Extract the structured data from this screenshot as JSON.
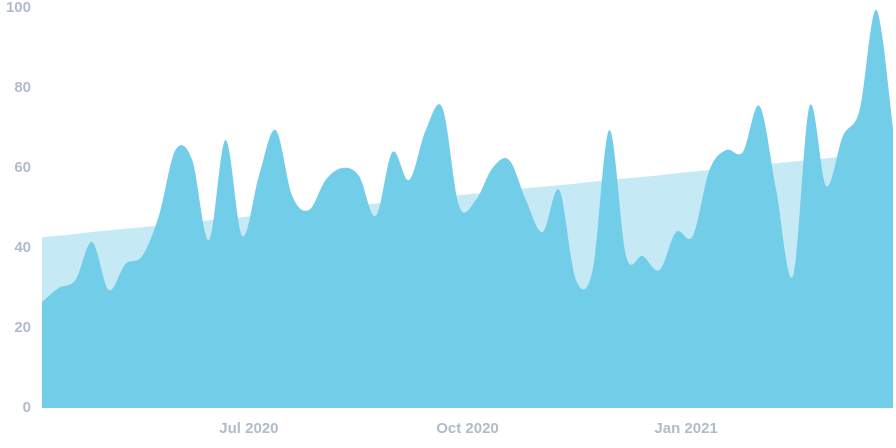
{
  "chart_data": {
    "type": "area",
    "x": [
      0,
      1,
      2,
      3,
      4,
      5,
      6,
      7,
      8,
      9,
      10,
      11,
      12,
      13,
      14,
      15,
      16,
      17,
      18,
      19,
      20,
      21,
      22,
      23,
      24,
      25,
      26,
      27,
      28,
      29,
      30,
      31,
      32,
      33,
      34,
      35,
      36,
      37,
      38,
      39,
      40,
      41,
      42,
      43,
      44,
      45,
      46,
      47,
      48,
      49,
      50,
      51
    ],
    "series": [
      {
        "color": "#c6eaf5",
        "values": [
          42.7,
          43.1,
          43.5,
          44.0,
          44.4,
          44.8,
          45.2,
          45.6,
          46.1,
          46.5,
          46.9,
          47.3,
          47.7,
          48.2,
          48.6,
          49.0,
          49.4,
          49.8,
          50.3,
          50.7,
          51.1,
          51.5,
          51.9,
          52.4,
          52.8,
          53.2,
          53.6,
          54.0,
          54.5,
          54.9,
          55.3,
          55.7,
          56.1,
          56.6,
          57.0,
          57.4,
          57.8,
          58.2,
          58.7,
          59.1,
          59.5,
          59.9,
          60.3,
          60.8,
          61.2,
          61.6,
          62.0,
          62.4,
          62.9,
          null,
          null,
          null
        ]
      },
      {
        "color": "#72cde9",
        "values": [
          26.5,
          30,
          32,
          41.5,
          29.5,
          36,
          38,
          48,
          64.5,
          62,
          42,
          67,
          43,
          58,
          69.5,
          53,
          49.5,
          57,
          60,
          58,
          48,
          64,
          57,
          69.5,
          75,
          50.5,
          52,
          60,
          62,
          52,
          44,
          54.5,
          32,
          34.5,
          69.5,
          38,
          38,
          34.5,
          44,
          43,
          59.5,
          64.5,
          64,
          75.5,
          54.5,
          33,
          75.5,
          55.5,
          68,
          74.5,
          99.5,
          70
        ]
      }
    ],
    "xlim": [
      0,
      51
    ],
    "xticks": [
      {
        "value": 12.4,
        "label": "Jul 2020"
      },
      {
        "value": 25.5,
        "label": "Oct 2020"
      },
      {
        "value": 38.6,
        "label": "Jan 2021"
      }
    ],
    "ylim": [
      0,
      100
    ],
    "yticks": [
      0,
      20,
      40,
      60,
      80,
      100
    ]
  }
}
